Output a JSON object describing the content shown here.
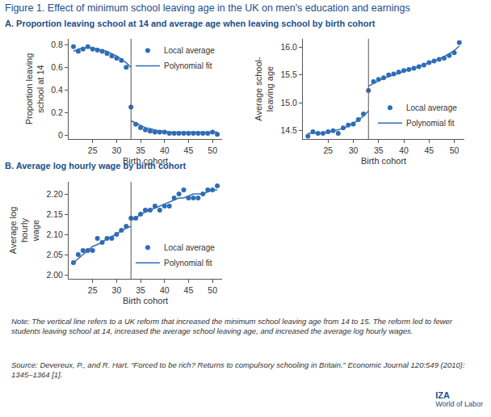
{
  "title": "Figure 1. Effect of minimum school leaving age in the UK on men's education and earnings",
  "sections": [
    "A. Proportion leaving school at 14 and average age when leaving school by birth cohort",
    "B. Average log hourly wage by birth cohort"
  ],
  "note": "Note: The vertical line refers to a UK reform that increased the minimum school leaving age from 14 to 15. The reform led to fewer students leaving school at 14, increased the average school leaving age, and increased the average log hourly wages.",
  "source": "Source: Devereux, P., and R. Hart. “Forced to be rich? Returns to compulsory schooling in Britain.” Economic Journal 120:549 (2010): 1345–1364 [1].",
  "logo": [
    "IZA",
    "World of Labor"
  ],
  "chart_data": [
    {
      "type": "scatter",
      "x": [
        21,
        22,
        23,
        24,
        25,
        26,
        27,
        28,
        29,
        30,
        31,
        32,
        33,
        34,
        35,
        36,
        37,
        38,
        39,
        40,
        41,
        42,
        43,
        44,
        45,
        46,
        47,
        48,
        49,
        50,
        51
      ],
      "xlim": [
        20,
        52
      ],
      "xticks": [
        25,
        30,
        35,
        40,
        45,
        50
      ],
      "ylim": [
        -0.03,
        0.85
      ],
      "yticks": [
        0,
        0.2,
        0.4,
        0.6,
        0.8
      ],
      "x_label": "Birth cohort",
      "y_label": "Proportion leaving\nschool at 14",
      "vertical_line": 33,
      "legend": "upper right",
      "series": [
        {
          "name": "Local average",
          "type": "scatter",
          "marker": "circle",
          "color": "#2f6db5",
          "values": [
            0.78,
            0.74,
            0.76,
            0.78,
            0.76,
            0.75,
            0.74,
            0.72,
            0.7,
            0.68,
            0.66,
            0.6,
            0.25,
            0.1,
            0.07,
            0.05,
            0.04,
            0.03,
            0.03,
            0.03,
            0.02,
            0.02,
            0.02,
            0.02,
            0.02,
            0.02,
            0.02,
            0.02,
            0.02,
            0.03,
            0.01
          ]
        },
        {
          "name": "Polynomial fit",
          "type": "line",
          "line_style": "solid",
          "color": "#2f6db5",
          "x": [
            21,
            22,
            23,
            24,
            25,
            26,
            27,
            28,
            29,
            30,
            31,
            32,
            33,
            null,
            33,
            34,
            35,
            36,
            37,
            38,
            39,
            40,
            41,
            42,
            43,
            44,
            45,
            46,
            47,
            48,
            49,
            50,
            51
          ],
          "values": [
            0.74,
            0.76,
            0.77,
            0.77,
            0.77,
            0.76,
            0.75,
            0.74,
            0.72,
            0.7,
            0.67,
            0.64,
            0.6,
            null,
            0.13,
            0.11,
            0.09,
            0.07,
            0.06,
            0.05,
            0.04,
            0.04,
            0.03,
            0.03,
            0.03,
            0.03,
            0.03,
            0.03,
            0.03,
            0.03,
            0.03,
            0.03,
            0.03
          ]
        }
      ]
    },
    {
      "type": "scatter",
      "x": [
        21,
        22,
        23,
        24,
        25,
        26,
        27,
        28,
        29,
        30,
        31,
        32,
        33,
        34,
        35,
        36,
        37,
        38,
        39,
        40,
        41,
        42,
        43,
        44,
        45,
        46,
        47,
        48,
        49,
        50,
        51
      ],
      "xlim": [
        20,
        52
      ],
      "xticks": [
        25,
        30,
        35,
        40,
        45,
        50
      ],
      "ylim": [
        14.35,
        16.15
      ],
      "yticks": [
        {
          "value": 14.5,
          "label": "14.5"
        },
        {
          "value": 15,
          "label": "15.0"
        },
        {
          "value": 15.5,
          "label": "15.5"
        },
        {
          "value": 16,
          "label": "16.0"
        }
      ],
      "x_label": "Birth cohort",
      "y_label": "Average school-\nleaving age",
      "vertical_line": 33,
      "legend": "lower right",
      "series": [
        {
          "name": "Local average",
          "type": "scatter",
          "marker": "circle",
          "color": "#2f6db5",
          "values": [
            14.4,
            14.48,
            14.45,
            14.45,
            14.48,
            14.5,
            14.45,
            14.55,
            14.6,
            14.62,
            14.7,
            14.8,
            15.22,
            15.38,
            15.42,
            15.45,
            15.5,
            15.52,
            15.55,
            15.58,
            15.6,
            15.62,
            15.65,
            15.68,
            15.72,
            15.75,
            15.78,
            15.8,
            15.85,
            15.9,
            16.08
          ]
        },
        {
          "name": "Polynomial fit",
          "type": "line",
          "line_style": "solid",
          "color": "#2f6db5",
          "x": [
            21,
            22,
            23,
            24,
            25,
            26,
            27,
            28,
            29,
            30,
            31,
            32,
            33,
            null,
            33,
            34,
            35,
            36,
            37,
            38,
            39,
            40,
            41,
            42,
            43,
            44,
            45,
            46,
            47,
            48,
            49,
            50,
            51
          ],
          "values": [
            14.45,
            14.45,
            14.45,
            14.46,
            14.47,
            14.49,
            14.51,
            14.54,
            14.58,
            14.63,
            14.69,
            14.76,
            14.85,
            null,
            15.3,
            15.35,
            15.4,
            15.44,
            15.47,
            15.5,
            15.53,
            15.56,
            15.59,
            15.62,
            15.65,
            15.68,
            15.71,
            15.75,
            15.79,
            15.83,
            15.88,
            15.94,
            16.02
          ]
        }
      ]
    },
    {
      "type": "scatter",
      "x": [
        21,
        22,
        23,
        24,
        25,
        26,
        27,
        28,
        29,
        30,
        31,
        32,
        33,
        34,
        35,
        36,
        37,
        38,
        39,
        40,
        41,
        42,
        43,
        44,
        45,
        46,
        47,
        48,
        49,
        50,
        51
      ],
      "xlim": [
        20,
        52
      ],
      "xticks": [
        25,
        30,
        35,
        40,
        45,
        50
      ],
      "ylim": [
        1.99,
        2.23
      ],
      "yticks": [
        {
          "value": 2.0,
          "label": "2.00"
        },
        {
          "value": 2.05,
          "label": "2.05"
        },
        {
          "value": 2.1,
          "label": "2.10"
        },
        {
          "value": 2.15,
          "label": "2.15"
        },
        {
          "value": 2.2,
          "label": "2.20"
        }
      ],
      "x_label": "Birth cohort",
      "y_label": "Average log\nhourly\nwage",
      "vertical_line": 33,
      "legend": "lower right",
      "series": [
        {
          "name": "Local average",
          "type": "scatter",
          "marker": "circle",
          "color": "#2f6db5",
          "values": [
            2.03,
            2.05,
            2.06,
            2.06,
            2.06,
            2.09,
            2.08,
            2.09,
            2.09,
            2.1,
            2.11,
            2.12,
            2.14,
            2.14,
            2.15,
            2.16,
            2.16,
            2.17,
            2.16,
            2.17,
            2.17,
            2.19,
            2.2,
            2.21,
            2.19,
            2.19,
            2.19,
            2.2,
            2.21,
            2.21,
            2.22
          ]
        },
        {
          "name": "Polynomial fit",
          "type": "line",
          "line_style": "solid",
          "color": "#2f6db5",
          "x": [
            21,
            22,
            23,
            24,
            25,
            26,
            27,
            28,
            29,
            30,
            31,
            32,
            33,
            null,
            33,
            34,
            35,
            36,
            37,
            38,
            39,
            40,
            41,
            42,
            43,
            44,
            45,
            46,
            47,
            48,
            49,
            50,
            51
          ],
          "values": [
            2.03,
            2.04,
            2.05,
            2.06,
            2.07,
            2.075,
            2.08,
            2.09,
            2.095,
            2.1,
            2.11,
            2.115,
            2.12,
            null,
            2.135,
            2.14,
            2.15,
            2.155,
            2.16,
            2.165,
            2.17,
            2.175,
            2.18,
            2.185,
            2.19,
            2.19,
            2.195,
            2.2,
            2.2,
            2.2,
            2.205,
            2.21,
            2.21
          ]
        }
      ]
    }
  ]
}
